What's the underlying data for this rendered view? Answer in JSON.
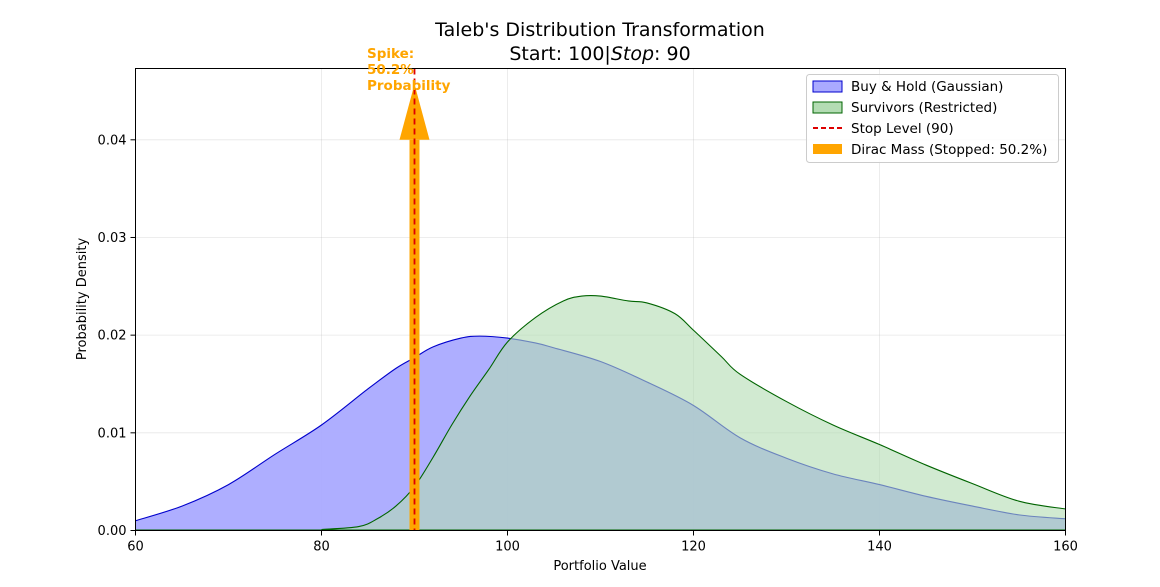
{
  "chart_data": {
    "type": "area",
    "title": "Taleb's Distribution Transformation",
    "subtitle_prefix": "Start: 100|",
    "subtitle_italic": "Stop",
    "subtitle_suffix": ": 90",
    "xlabel": "Portfolio Value",
    "ylabel": "Probability Density",
    "xlim": [
      60,
      160
    ],
    "ylim": [
      0,
      0.0473
    ],
    "xticks": [
      60,
      80,
      100,
      120,
      140,
      160
    ],
    "xtick_labels": [
      "60",
      "80",
      "100",
      "120",
      "140",
      "160"
    ],
    "yticks": [
      0,
      0.01,
      0.02,
      0.03,
      0.04
    ],
    "ytick_labels": [
      "0.00",
      "0.01",
      "0.02",
      "0.03",
      "0.04"
    ],
    "grid": true,
    "legend_position": "top-right",
    "series": [
      {
        "name": "Buy & Hold (Gaussian)",
        "fill": "#aaaaff",
        "line": "#0000cc",
        "x": [
          60,
          65,
          70,
          75,
          80,
          85,
          88,
          90,
          92,
          95,
          97,
          100,
          103,
          105,
          110,
          115,
          120,
          125,
          130,
          135,
          140,
          145,
          150,
          155,
          160
        ],
        "y": [
          0.001,
          0.0025,
          0.0047,
          0.0078,
          0.0108,
          0.0145,
          0.0166,
          0.0177,
          0.0188,
          0.0197,
          0.0199,
          0.0197,
          0.0192,
          0.0187,
          0.0173,
          0.0152,
          0.0128,
          0.0095,
          0.0074,
          0.0058,
          0.0047,
          0.0035,
          0.0025,
          0.0016,
          0.0012
        ]
      },
      {
        "name": "Survivors (Restricted)",
        "fill": "#b3dcb3",
        "line": "#006400",
        "x": [
          80,
          84,
          86,
          88,
          90,
          92,
          94,
          96,
          98,
          100,
          103,
          106,
          108,
          110,
          113,
          115,
          118,
          120,
          123,
          125,
          130,
          135,
          140,
          145,
          150,
          155,
          160
        ],
        "y": [
          0.0001,
          0.0004,
          0.0012,
          0.0025,
          0.0045,
          0.0075,
          0.0108,
          0.0138,
          0.0165,
          0.0193,
          0.0218,
          0.0235,
          0.024,
          0.024,
          0.0235,
          0.0233,
          0.0222,
          0.0205,
          0.0178,
          0.016,
          0.0132,
          0.0108,
          0.0088,
          0.0067,
          0.0048,
          0.003,
          0.0022
        ]
      }
    ],
    "stop_line": {
      "name": "Stop Level (90)",
      "x": 90,
      "color": "#dd0000"
    },
    "dirac": {
      "name": "Dirac Mass (Stopped: 50.2%)",
      "x": 90,
      "height": 0.0457,
      "color": "#FFA500",
      "probability_pct": 50.2
    },
    "annotation": {
      "lines": [
        "Spike:",
        "50.2%",
        "Probability"
      ],
      "x": 85,
      "y": 0.0488
    },
    "legend": [
      {
        "label": "Buy & Hold (Gaussian)"
      },
      {
        "label": "Survivors (Restricted)"
      },
      {
        "label": "Stop Level (90)"
      },
      {
        "label": "Dirac Mass (Stopped: 50.2%)"
      }
    ]
  }
}
